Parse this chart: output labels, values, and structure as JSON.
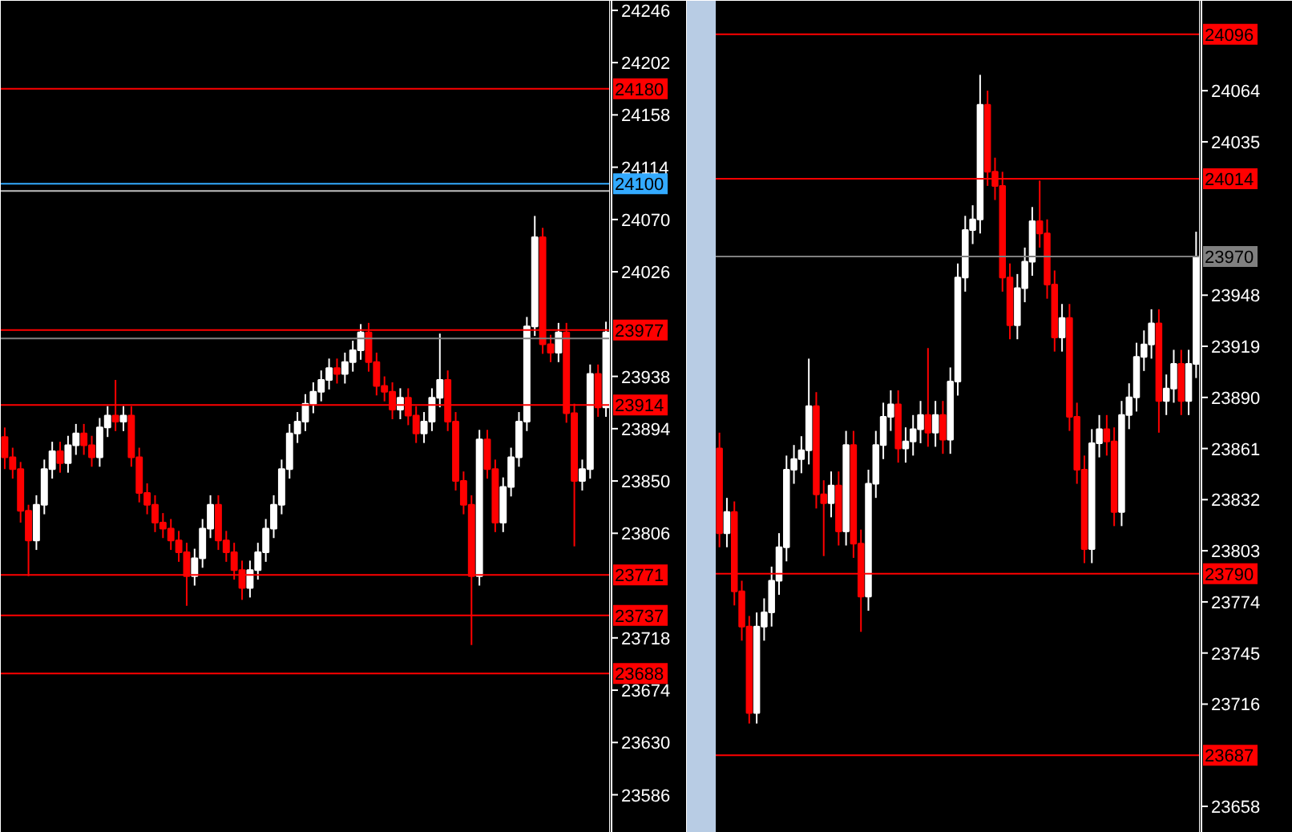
{
  "chart_data": [
    {
      "type": "candlestick",
      "categories": [
        null,
        null,
        null,
        null,
        null,
        null,
        null,
        null,
        null,
        null,
        null,
        null,
        null,
        null,
        null,
        null,
        null,
        null,
        null,
        null,
        null,
        null,
        null,
        null,
        null,
        null,
        null,
        null,
        null,
        null,
        null,
        null,
        null,
        null,
        null,
        null,
        null,
        null,
        null,
        null,
        null,
        null,
        null,
        null,
        null,
        null,
        null,
        null,
        null,
        null,
        null,
        null,
        null,
        null,
        null,
        null,
        null,
        null,
        null,
        null,
        null,
        null,
        null,
        null,
        null,
        null,
        null,
        null,
        null,
        null,
        null,
        null,
        null,
        null,
        null,
        null,
        null
      ],
      "colors": [
        "#ff0000",
        "#ff0000",
        "#ff0000",
        "#ff0000",
        "#ffffff",
        "#ffffff",
        "#ffffff",
        "#ff0000",
        "#ffffff",
        "#ffffff",
        "#ff0000",
        "#ff0000",
        "#ffffff",
        "#ffffff",
        "#ff0000",
        "#ffffff",
        "#ff0000",
        "#ff0000",
        "#ff0000",
        "#ff0000",
        "#ff0000",
        "#ff0000",
        "#ff0000",
        "#ff0000",
        "#ffffff",
        "#ffffff",
        "#ffffff",
        "#ff0000",
        "#ff0000",
        "#ff0000",
        "#ff0000",
        "#ffffff",
        "#ffffff",
        "#ffffff",
        "#ffffff",
        "#ffffff",
        "#ffffff",
        "#ffffff",
        "#ffffff",
        "#ffffff",
        "#ffffff",
        "#ffffff",
        "#ff0000",
        "#ffffff",
        "#ffffff",
        "#ffffff",
        "#ff0000",
        "#ff0000",
        "#ff0000",
        "#ff0000",
        "#ffffff",
        "#ff0000",
        "#ff0000",
        "#ffffff",
        "#ffffff",
        "#ffffff",
        "#ff0000",
        "#ff0000",
        "#ff0000",
        "#ff0000",
        "#ffffff",
        "#ff0000",
        "#ff0000",
        "#ffffff",
        "#ffffff",
        "#ffffff",
        "#ffffff",
        "#ffffff",
        "#ff0000",
        "#ff0000",
        "#ffffff",
        "#ff0000",
        "#ff0000",
        "#ffffff",
        "#ffffff",
        "#ff0000",
        "#ffffff"
      ],
      "ohlc": [
        [
          23887,
          23895,
          23860,
          23870
        ],
        [
          23870,
          23878,
          23852,
          23860
        ],
        [
          23860,
          23866,
          23815,
          23825
        ],
        [
          23825,
          23830,
          23770,
          23800
        ],
        [
          23800,
          23838,
          23792,
          23830
        ],
        [
          23830,
          23868,
          23822,
          23860
        ],
        [
          23860,
          23883,
          23852,
          23875
        ],
        [
          23875,
          23883,
          23857,
          23865
        ],
        [
          23865,
          23888,
          23857,
          23880
        ],
        [
          23880,
          23898,
          23872,
          23890
        ],
        [
          23890,
          23898,
          23872,
          23880
        ],
        [
          23880,
          23888,
          23862,
          23870
        ],
        [
          23870,
          23903,
          23862,
          23895
        ],
        [
          23895,
          23913,
          23887,
          23905
        ],
        [
          23905,
          23935,
          23892,
          23900
        ],
        [
          23900,
          23913,
          23892,
          23905
        ],
        [
          23905,
          23913,
          23862,
          23870
        ],
        [
          23870,
          23878,
          23832,
          23840
        ],
        [
          23840,
          23848,
          23822,
          23830
        ],
        [
          23830,
          23838,
          23807,
          23815
        ],
        [
          23815,
          23823,
          23802,
          23810
        ],
        [
          23810,
          23818,
          23792,
          23800
        ],
        [
          23800,
          23808,
          23782,
          23790
        ],
        [
          23790,
          23798,
          23745,
          23770
        ],
        [
          23770,
          23793,
          23762,
          23785
        ],
        [
          23785,
          23818,
          23777,
          23810
        ],
        [
          23810,
          23838,
          23802,
          23830
        ],
        [
          23830,
          23838,
          23792,
          23800
        ],
        [
          23800,
          23808,
          23782,
          23790
        ],
        [
          23790,
          23798,
          23767,
          23775
        ],
        [
          23775,
          23783,
          23750,
          23760
        ],
        [
          23760,
          23783,
          23752,
          23775
        ],
        [
          23775,
          23798,
          23767,
          23790
        ],
        [
          23790,
          23818,
          23782,
          23810
        ],
        [
          23810,
          23838,
          23802,
          23830
        ],
        [
          23830,
          23868,
          23822,
          23860
        ],
        [
          23860,
          23898,
          23852,
          23890
        ],
        [
          23890,
          23908,
          23882,
          23900
        ],
        [
          23900,
          23923,
          23892,
          23915
        ],
        [
          23915,
          23933,
          23907,
          23925
        ],
        [
          23925,
          23943,
          23917,
          23935
        ],
        [
          23935,
          23953,
          23927,
          23945
        ],
        [
          23945,
          23953,
          23932,
          23940
        ],
        [
          23940,
          23958,
          23932,
          23950
        ],
        [
          23950,
          23968,
          23942,
          23960
        ],
        [
          23960,
          23982,
          23952,
          23975
        ],
        [
          23975,
          23983,
          23942,
          23950
        ],
        [
          23950,
          23958,
          23922,
          23930
        ],
        [
          23930,
          23938,
          23917,
          23925
        ],
        [
          23925,
          23933,
          23902,
          23910
        ],
        [
          23910,
          23928,
          23902,
          23920
        ],
        [
          23920,
          23928,
          23897,
          23905
        ],
        [
          23905,
          23913,
          23882,
          23890
        ],
        [
          23890,
          23908,
          23882,
          23900
        ],
        [
          23900,
          23928,
          23892,
          23920
        ],
        [
          23920,
          23974,
          23912,
          23935
        ],
        [
          23935,
          23943,
          23892,
          23900
        ],
        [
          23900,
          23908,
          23842,
          23850
        ],
        [
          23850,
          23858,
          23822,
          23830
        ],
        [
          23830,
          23838,
          23712,
          23770
        ],
        [
          23770,
          23893,
          23762,
          23885
        ],
        [
          23885,
          23893,
          23852,
          23860
        ],
        [
          23860,
          23868,
          23807,
          23815
        ],
        [
          23815,
          23853,
          23807,
          23845
        ],
        [
          23845,
          23878,
          23837,
          23870
        ],
        [
          23870,
          23908,
          23862,
          23900
        ],
        [
          23900,
          23988,
          23892,
          23980
        ],
        [
          23980,
          24073,
          23972,
          24055
        ],
        [
          24055,
          24063,
          23957,
          23965
        ],
        [
          23965,
          23973,
          23950,
          23958
        ],
        [
          23958,
          23983,
          23950,
          23975
        ],
        [
          23975,
          23983,
          23899,
          23907
        ],
        [
          23907,
          23915,
          23795,
          23850
        ],
        [
          23850,
          23868,
          23842,
          23860
        ],
        [
          23860,
          23948,
          23852,
          23940
        ],
        [
          23940,
          23948,
          23904,
          23912
        ],
        [
          23912,
          23984,
          23904,
          23975
        ]
      ],
      "ylim": [
        23554,
        24254
      ],
      "yticks": [
        23586,
        23630,
        23674,
        23718,
        23806,
        23850,
        23894,
        23938,
        24026,
        24070,
        24114,
        24158,
        24202,
        24246
      ],
      "tick_labels": "y",
      "grid": false,
      "ref_lines": [
        {
          "axis": "y",
          "value": 24180,
          "label": "24180",
          "color": "#ff0000"
        },
        {
          "axis": "y",
          "value": 24100,
          "label": "24100",
          "color": "#33aaff"
        },
        {
          "axis": "y",
          "value": 24094,
          "label": null,
          "color": "#c0c0c0"
        },
        {
          "axis": "y",
          "value": 23977,
          "label": "23977",
          "color": "#ff0000"
        },
        {
          "axis": "y",
          "value": 23970,
          "label": null,
          "color": "#808080"
        },
        {
          "axis": "y",
          "value": 23914,
          "label": "23914",
          "color": "#ff0000"
        },
        {
          "axis": "y",
          "value": 23771,
          "label": "23771",
          "color": "#ff0000"
        },
        {
          "axis": "y",
          "value": 23737,
          "label": "23737",
          "color": "#ff0000"
        },
        {
          "axis": "y",
          "value": 23688,
          "label": "23688",
          "color": "#ff0000"
        }
      ]
    },
    {
      "type": "candlestick",
      "categories": [
        null,
        null,
        null,
        null,
        null,
        null,
        null,
        null,
        null,
        null,
        null,
        null,
        null,
        null,
        null,
        null,
        null,
        null,
        null,
        null,
        null,
        null,
        null,
        null,
        null,
        null,
        null,
        null,
        null,
        null,
        null,
        null,
        null,
        null,
        null,
        null,
        null,
        null,
        null,
        null,
        null,
        null,
        null,
        null,
        null,
        null,
        null,
        null,
        null,
        null,
        null,
        null,
        null,
        null,
        null,
        null,
        null,
        null,
        null,
        null,
        null,
        null,
        null,
        null,
        null
      ],
      "colors": [
        "#ff0000",
        "#ffffff",
        "#ff0000",
        "#ff0000",
        "#ff0000",
        "#ffffff",
        "#ffffff",
        "#ffffff",
        "#ffffff",
        "#ffffff",
        "#ffffff",
        "#ffffff",
        "#ffffff",
        "#ff0000",
        "#ff0000",
        "#ffffff",
        "#ff0000",
        "#ffffff",
        "#ff0000",
        "#ff0000",
        "#ffffff",
        "#ffffff",
        "#ffffff",
        "#ffffff",
        "#ff0000",
        "#ffffff",
        "#ffffff",
        "#ffffff",
        "#ff0000",
        "#ffffff",
        "#ff0000",
        "#ffffff",
        "#ffffff",
        "#ffffff",
        "#ffffff",
        "#ffffff",
        "#ff0000",
        "#ff0000",
        "#ff0000",
        "#ff0000",
        "#ffffff",
        "#ffffff",
        "#ffffff",
        "#ff0000",
        "#ff0000",
        "#ff0000",
        "#ffffff",
        "#ff0000",
        "#ff0000",
        "#ff0000",
        "#ffffff",
        "#ffffff",
        "#ff0000",
        "#ff0000",
        "#ffffff",
        "#ffffff",
        "#ffffff",
        "#ffffff",
        "#ffffff",
        "#ff0000",
        "#ffffff",
        "#ffffff",
        "#ff0000",
        "#ffffff",
        "#ffffff"
      ],
      "ohlc": [
        [
          23861,
          23870,
          23805,
          23813
        ],
        [
          23813,
          23833,
          23805,
          23825
        ],
        [
          23825,
          23831,
          23772,
          23780
        ],
        [
          23780,
          23786,
          23752,
          23760
        ],
        [
          23760,
          23766,
          23705,
          23711
        ],
        [
          23711,
          23768,
          23705,
          23760
        ],
        [
          23760,
          23776,
          23752,
          23768
        ],
        [
          23768,
          23794,
          23760,
          23786
        ],
        [
          23786,
          23813,
          23778,
          23805
        ],
        [
          23805,
          23857,
          23797,
          23849
        ],
        [
          23849,
          23863,
          23841,
          23855
        ],
        [
          23855,
          23868,
          23847,
          23860
        ],
        [
          23860,
          23912,
          23852,
          23885
        ],
        [
          23885,
          23893,
          23827,
          23835
        ],
        [
          23835,
          23843,
          23800,
          23830
        ],
        [
          23830,
          23848,
          23822,
          23840
        ],
        [
          23840,
          23848,
          23806,
          23814
        ],
        [
          23814,
          23871,
          23806,
          23863
        ],
        [
          23863,
          23871,
          23799,
          23807
        ],
        [
          23807,
          23815,
          23757,
          23777
        ],
        [
          23777,
          23849,
          23769,
          23841
        ],
        [
          23841,
          23871,
          23833,
          23863
        ],
        [
          23863,
          23887,
          23855,
          23879
        ],
        [
          23879,
          23894,
          23871,
          23886
        ],
        [
          23886,
          23894,
          23853,
          23861
        ],
        [
          23861,
          23873,
          23853,
          23865
        ],
        [
          23865,
          23880,
          23857,
          23872
        ],
        [
          23872,
          23888,
          23864,
          23880
        ],
        [
          23880,
          23918,
          23862,
          23870
        ],
        [
          23870,
          23888,
          23862,
          23880
        ],
        [
          23880,
          23888,
          23858,
          23866
        ],
        [
          23866,
          23907,
          23858,
          23899
        ],
        [
          23899,
          23966,
          23891,
          23958
        ],
        [
          23958,
          23993,
          23950,
          23985
        ],
        [
          23985,
          23999,
          23977,
          23991
        ],
        [
          23991,
          24073,
          23983,
          24056
        ],
        [
          24056,
          24064,
          24010,
          24018
        ],
        [
          24018,
          24026,
          24002,
          24010
        ],
        [
          24010,
          24018,
          23950,
          23958
        ],
        [
          23958,
          23966,
          23923,
          23931
        ],
        [
          23931,
          23960,
          23923,
          23952
        ],
        [
          23952,
          23975,
          23944,
          23967
        ],
        [
          23967,
          23998,
          23959,
          23990
        ],
        [
          23990,
          24013,
          23975,
          23983
        ],
        [
          23983,
          23991,
          23946,
          23954
        ],
        [
          23954,
          23962,
          23916,
          23924
        ],
        [
          23924,
          23943,
          23916,
          23935
        ],
        [
          23935,
          23943,
          23871,
          23879
        ],
        [
          23879,
          23887,
          23841,
          23849
        ],
        [
          23849,
          23857,
          23796,
          23804
        ],
        [
          23804,
          23872,
          23796,
          23864
        ],
        [
          23864,
          23880,
          23856,
          23872
        ],
        [
          23872,
          23880,
          23857,
          23865
        ],
        [
          23865,
          23873,
          23817,
          23825
        ],
        [
          23825,
          23888,
          23817,
          23880
        ],
        [
          23880,
          23898,
          23872,
          23890
        ],
        [
          23890,
          23921,
          23882,
          23913
        ],
        [
          23913,
          23928,
          23905,
          23920
        ],
        [
          23920,
          23940,
          23912,
          23932
        ],
        [
          23932,
          23940,
          23870,
          23888
        ],
        [
          23888,
          23903,
          23880,
          23895
        ],
        [
          23895,
          23917,
          23887,
          23909
        ],
        [
          23909,
          23917,
          23880,
          23888
        ],
        [
          23888,
          23917,
          23880,
          23909
        ],
        [
          23909,
          23984,
          23901,
          23970
        ]
      ],
      "ylim": [
        23643,
        24115
      ],
      "yticks": [
        23658,
        23716,
        23745,
        23774,
        23803,
        23832,
        23861,
        23890,
        23919,
        23948,
        24035,
        24064
      ],
      "tick_labels": "y",
      "grid": false,
      "ref_lines": [
        {
          "axis": "y",
          "value": 24096,
          "label": "24096",
          "color": "#ff0000"
        },
        {
          "axis": "y",
          "value": 24014,
          "label": "24014",
          "color": "#ff0000"
        },
        {
          "axis": "y",
          "value": 23970,
          "label": "23970",
          "color": "#808080"
        },
        {
          "axis": "y",
          "value": 23790,
          "label": "23790",
          "color": "#ff0000"
        },
        {
          "axis": "y",
          "value": 23687,
          "label": "23687",
          "color": "#ff0000"
        }
      ]
    }
  ]
}
